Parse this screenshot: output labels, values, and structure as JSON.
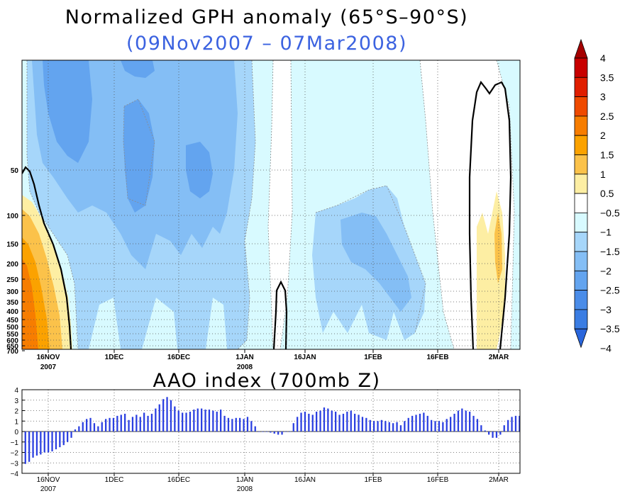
{
  "top": {
    "title": "Normalized GPH anomaly (65°S–90°S)",
    "subtitle": "(09Nov2007 – 07Mar2008)",
    "subtitle_color": "#3b62e0",
    "y_ticks": [
      "50",
      "100",
      "150",
      "200",
      "250",
      "300",
      "350",
      "400",
      "450",
      "500",
      "550",
      "600",
      "650",
      "700"
    ],
    "x_ticks": [
      {
        "line1": "16NOV",
        "line2": "2007"
      },
      {
        "line1": "1DEC",
        "line2": ""
      },
      {
        "line1": "16DEC",
        "line2": ""
      },
      {
        "line1": "1JAN",
        "line2": "2008"
      },
      {
        "line1": "16JAN",
        "line2": ""
      },
      {
        "line1": "1FEB",
        "line2": ""
      },
      {
        "line1": "16FEB",
        "line2": ""
      },
      {
        "line1": "2MAR",
        "line2": ""
      }
    ]
  },
  "colorbar": {
    "labels": [
      "4",
      "3.5",
      "3",
      "2.5",
      "2",
      "1.5",
      "1",
      "0.5",
      "−0.5",
      "−1",
      "−1.5",
      "−2",
      "−2.5",
      "−3",
      "−3.5",
      "−4"
    ],
    "colors": [
      "#a50000",
      "#c80000",
      "#e01e00",
      "#ef4a00",
      "#f77d00",
      "#fba200",
      "#fbc24a",
      "#fdeea3",
      "#ffffff",
      "#d8faff",
      "#a6d6fa",
      "#84bef5",
      "#63a4ef",
      "#4a8ce8",
      "#3a7de3",
      "#2a66dc"
    ]
  },
  "chart_data": [
    {
      "type": "heatmap",
      "title": "Normalized GPH anomaly (65°S–90°S)",
      "subtitle": "(09Nov2007 – 07Mar2008)",
      "x_range": [
        "09Nov2007",
        "07Mar2008"
      ],
      "y_axis": "pressure (mb), log scale, inverted",
      "y_ticks": [
        50,
        100,
        150,
        200,
        250,
        300,
        350,
        400,
        450,
        500,
        550,
        600,
        650,
        700
      ],
      "contour_levels": [
        -4,
        -3.5,
        -3,
        -2.5,
        -2,
        -1.5,
        -1,
        -0.5,
        0.5,
        1,
        1.5,
        2,
        2.5,
        3,
        3.5,
        4
      ],
      "features": [
        {
          "period": "09Nov–20Nov 2007",
          "levels": "100–700 mb",
          "value_max": 2.0,
          "note": "positive anomaly in lower levels"
        },
        {
          "period": "Nov 2007 – early Jan 2008",
          "levels": "10–700 mb",
          "value_min": -2.5,
          "note": "broad negative anomaly"
        },
        {
          "period": "around 10Jan 2008",
          "levels": "250–700 mb",
          "note": "near-zero anomaly, bold contour"
        },
        {
          "period": "late Jan – mid Feb 2008",
          "levels": "50–700 mb",
          "value_min": -2.0,
          "note": "negative anomaly"
        },
        {
          "period": "late Feb – early Mar 2008",
          "levels": "10–700 mb",
          "value_max": 1.0,
          "note": "positive anomaly, bold contour"
        }
      ]
    },
    {
      "type": "bar",
      "title": "AAO index (700mb Z)",
      "x_range": [
        "09Nov2007",
        "07Mar2008"
      ],
      "ylim": [
        -4,
        4
      ],
      "y_ticks": [
        4,
        3,
        2,
        1,
        0,
        -1,
        -2,
        -3,
        -4
      ],
      "x_ticks": [
        "16NOV 2007",
        "1DEC",
        "16DEC",
        "1JAN 2008",
        "16JAN",
        "1FEB",
        "16FEB",
        "2MAR"
      ],
      "values": [
        -3.1,
        -2.9,
        -2.5,
        -2.3,
        -2.2,
        -2.0,
        -2.0,
        -1.9,
        -1.7,
        -1.5,
        -1.3,
        -1.0,
        -0.6,
        0.2,
        0.5,
        0.9,
        1.2,
        1.3,
        0.8,
        0.5,
        0.9,
        1.2,
        1.3,
        1.3,
        1.5,
        1.6,
        1.7,
        1.1,
        1.4,
        1.6,
        1.4,
        1.8,
        1.5,
        1.7,
        2.2,
        2.6,
        3.1,
        3.3,
        3.0,
        2.4,
        2.0,
        1.8,
        1.8,
        1.9,
        2.1,
        2.2,
        2.2,
        2.1,
        2.1,
        2.0,
        1.9,
        2.1,
        1.5,
        1.3,
        1.2,
        1.3,
        1.3,
        1.2,
        1.4,
        1.0,
        0.5,
        0.0,
        0.0,
        0.0,
        -0.1,
        -0.2,
        -0.3,
        -0.3,
        0.0,
        0.0,
        0.8,
        1.4,
        1.8,
        1.9,
        1.7,
        1.6,
        1.9,
        2.0,
        2.3,
        2.2,
        2.0,
        1.9,
        1.6,
        1.7,
        1.9,
        2.0,
        1.7,
        1.6,
        1.4,
        1.3,
        1.1,
        1.0,
        1.0,
        1.1,
        1.0,
        0.9,
        0.8,
        0.9,
        0.6,
        1.0,
        1.3,
        1.5,
        1.6,
        1.7,
        1.8,
        1.5,
        1.1,
        1.0,
        1.0,
        0.9,
        1.2,
        1.4,
        1.7,
        2.0,
        2.2,
        2.0,
        1.9,
        1.5,
        1.2,
        0.6,
        0.1,
        -0.3,
        -0.6,
        -0.6,
        -0.3,
        0.6,
        1.1,
        1.4,
        1.5,
        1.5
      ]
    }
  ],
  "aao": {
    "title": "AAO index (700mb Z)",
    "bar_color": "#2a3fe0",
    "y_ticks": [
      "4",
      "3",
      "2",
      "1",
      "0",
      "−1",
      "−2",
      "−3",
      "−4"
    ]
  }
}
